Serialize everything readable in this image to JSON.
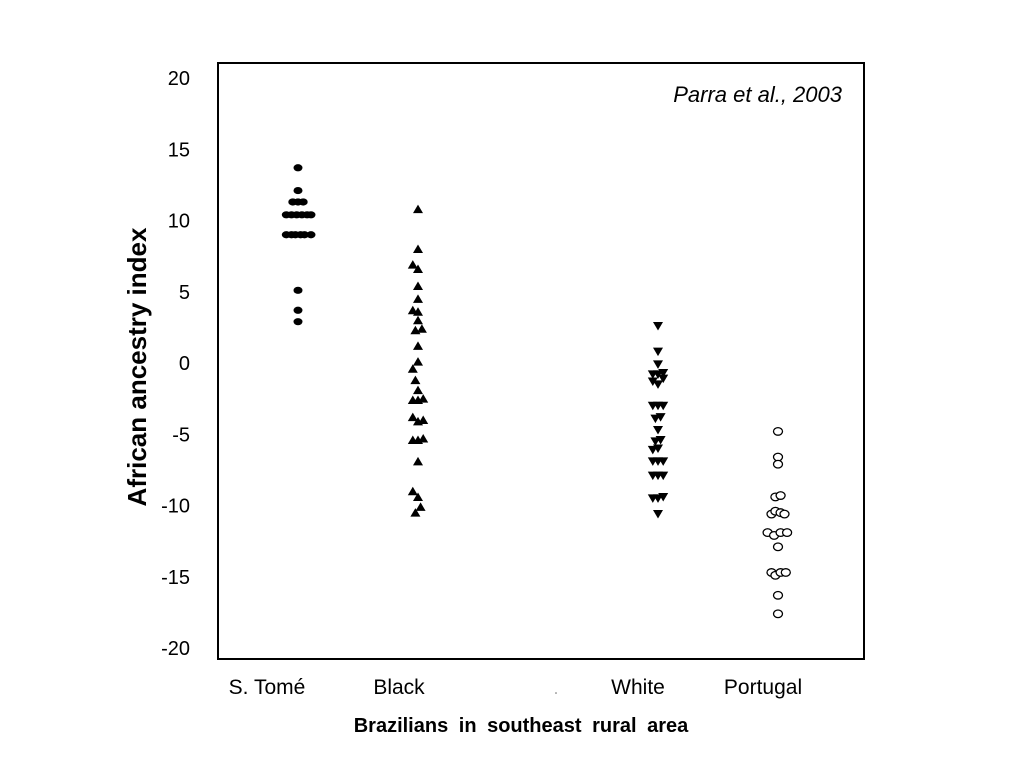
{
  "chart_data": {
    "type": "scatter",
    "annotation": "Parra et al., 2003",
    "xlabel": "Brazilians  in  southeast  rural  area",
    "ylabel": "African ancestry index",
    "ylim": [
      -20,
      20
    ],
    "yticks": [
      20,
      15,
      10,
      5,
      0,
      -5,
      -10,
      -15,
      -20
    ],
    "ytick_labels": [
      "20",
      "15",
      "10",
      "5",
      "0",
      "-5",
      "-10",
      "-15",
      "-20"
    ],
    "grid": false,
    "legend": "none",
    "categories": [
      "S. Tomé",
      "Black",
      "White",
      "Portugal"
    ],
    "series": [
      {
        "category": "S. Tomé",
        "marker": "filled-circle",
        "points": [
          [
            0,
            13.7
          ],
          [
            0,
            12.1
          ],
          [
            -0.4,
            11.3
          ],
          [
            0,
            11.3
          ],
          [
            0.4,
            11.3
          ],
          [
            -0.9,
            10.4
          ],
          [
            -0.5,
            10.4
          ],
          [
            -0.1,
            10.4
          ],
          [
            0.3,
            10.4
          ],
          [
            0.7,
            10.4
          ],
          [
            1.0,
            10.4
          ],
          [
            -0.9,
            9.0
          ],
          [
            -0.5,
            9.0
          ],
          [
            -0.2,
            9.0
          ],
          [
            0.2,
            9.0
          ],
          [
            0.5,
            9.0
          ],
          [
            1.0,
            9.0
          ],
          [
            0,
            5.1
          ],
          [
            0,
            3.7
          ],
          [
            0,
            2.9
          ]
        ]
      },
      {
        "category": "Black",
        "marker": "filled-triangle-up",
        "points": [
          [
            0,
            10.8
          ],
          [
            0,
            8.0
          ],
          [
            -0.4,
            6.9
          ],
          [
            0,
            6.6
          ],
          [
            0,
            5.4
          ],
          [
            0,
            4.5
          ],
          [
            -0.4,
            3.7
          ],
          [
            0,
            3.6
          ],
          [
            0,
            3.0
          ],
          [
            -0.2,
            2.3
          ],
          [
            0.3,
            2.4
          ],
          [
            0,
            1.2
          ],
          [
            0,
            0.1
          ],
          [
            -0.4,
            -0.4
          ],
          [
            -0.2,
            -1.2
          ],
          [
            0,
            -1.9
          ],
          [
            -0.4,
            -2.6
          ],
          [
            0,
            -2.6
          ],
          [
            0.4,
            -2.5
          ],
          [
            -0.4,
            -3.8
          ],
          [
            0,
            -4.1
          ],
          [
            0.4,
            -4.0
          ],
          [
            -0.4,
            -5.4
          ],
          [
            0,
            -5.4
          ],
          [
            0.4,
            -5.3
          ],
          [
            0,
            -6.9
          ],
          [
            -0.4,
            -9.0
          ],
          [
            0,
            -9.4
          ],
          [
            -0.2,
            -10.5
          ],
          [
            0.2,
            -10.1
          ]
        ]
      },
      {
        "category": "White",
        "marker": "filled-triangle-down",
        "points": [
          [
            0,
            2.6
          ],
          [
            0,
            0.8
          ],
          [
            0,
            -0.1
          ],
          [
            -0.4,
            -0.8
          ],
          [
            0,
            -0.8
          ],
          [
            0.4,
            -0.7
          ],
          [
            -0.4,
            -1.3
          ],
          [
            0,
            -1.5
          ],
          [
            0.4,
            -1.1
          ],
          [
            -0.4,
            -3.0
          ],
          [
            0,
            -3.0
          ],
          [
            0.4,
            -3.0
          ],
          [
            -0.2,
            -3.9
          ],
          [
            0.2,
            -3.8
          ],
          [
            0,
            -4.7
          ],
          [
            -0.2,
            -5.5
          ],
          [
            0.2,
            -5.4
          ],
          [
            -0.4,
            -6.1
          ],
          [
            0,
            -6.0
          ],
          [
            -0.4,
            -6.9
          ],
          [
            0,
            -6.9
          ],
          [
            0.4,
            -6.9
          ],
          [
            -0.4,
            -7.9
          ],
          [
            0,
            -7.9
          ],
          [
            0.4,
            -7.9
          ],
          [
            -0.4,
            -9.5
          ],
          [
            0,
            -9.5
          ],
          [
            0.4,
            -9.4
          ],
          [
            0,
            -10.6
          ]
        ]
      },
      {
        "category": "Portugal",
        "marker": "open-circle",
        "points": [
          [
            0,
            -4.8
          ],
          [
            0,
            -6.6
          ],
          [
            0,
            -7.1
          ],
          [
            -0.2,
            -9.4
          ],
          [
            0.2,
            -9.3
          ],
          [
            -0.5,
            -10.6
          ],
          [
            -0.2,
            -10.4
          ],
          [
            0.2,
            -10.5
          ],
          [
            0.5,
            -10.6
          ],
          [
            -0.8,
            -11.9
          ],
          [
            -0.3,
            -12.1
          ],
          [
            0.2,
            -11.9
          ],
          [
            0.7,
            -11.9
          ],
          [
            0,
            -12.9
          ],
          [
            -0.5,
            -14.7
          ],
          [
            -0.2,
            -14.9
          ],
          [
            0.2,
            -14.7
          ],
          [
            0.6,
            -14.7
          ],
          [
            0,
            -16.3
          ],
          [
            0,
            -17.6
          ]
        ]
      }
    ]
  }
}
